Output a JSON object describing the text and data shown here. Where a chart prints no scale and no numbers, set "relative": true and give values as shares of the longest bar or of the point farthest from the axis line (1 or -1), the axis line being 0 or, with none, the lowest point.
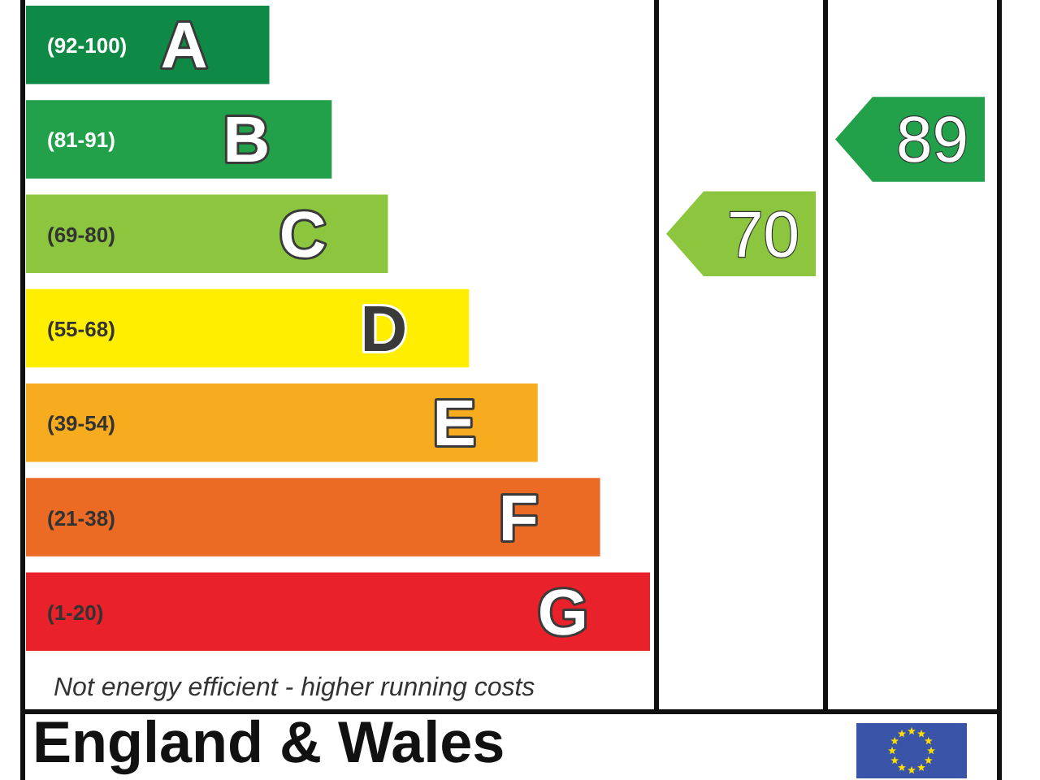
{
  "chart_data": {
    "type": "bar",
    "orientation": "horizontal",
    "relative": true,
    "title": "England & Wales",
    "categories": [
      "A",
      "B",
      "C",
      "D",
      "E",
      "F",
      "G"
    ],
    "values": [
      0.39,
      0.49,
      0.58,
      0.71,
      0.82,
      0.92,
      1
    ],
    "colors": [
      "#0f8a46",
      "#22a04a",
      "#8cc63e",
      "#ffee00",
      "#f7ac1f",
      "#eb6a24",
      "#e9212a"
    ],
    "annotations": [
      "(92-100)",
      "(81-91)",
      "(69-80)",
      "(55-68)",
      "(39-54)",
      "(21-38)",
      "(1-20)",
      "70",
      "89",
      "Not energy efficient - higher running costs"
    ]
  }
}
